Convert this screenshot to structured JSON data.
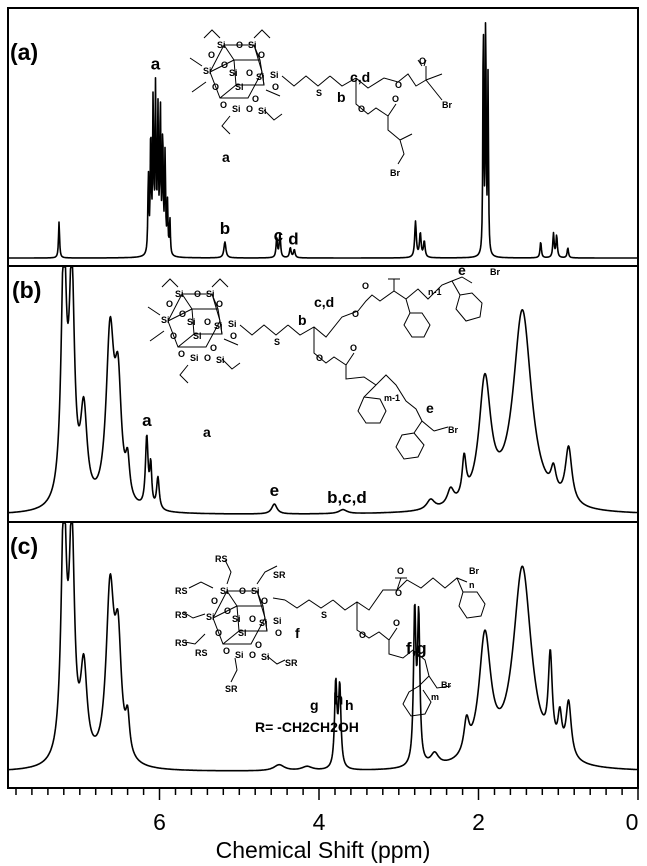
{
  "chart_data": {
    "type": "line",
    "xlabel": "Chemical Shift (ppm)",
    "xlim": [
      7.9,
      0
    ],
    "x_ticks": [
      6,
      4,
      2,
      0
    ],
    "x_tick_labels": [
      "6",
      "4",
      "2",
      "0"
    ],
    "grid": false,
    "panels": [
      {
        "label": "(a)",
        "peaks": [
          {
            "x": 7.26,
            "h": 0.18,
            "w": 0.008
          },
          {
            "x": 6.14,
            "h": 0.4,
            "w": 0.007
          },
          {
            "x": 6.11,
            "h": 0.62,
            "w": 0.007
          },
          {
            "x": 6.08,
            "h": 0.78,
            "w": 0.007
          },
          {
            "x": 6.05,
            "h": 0.8,
            "w": 0.007
          },
          {
            "x": 6.02,
            "h": 0.7,
            "w": 0.007
          },
          {
            "x": 5.99,
            "h": 0.76,
            "w": 0.007
          },
          {
            "x": 5.96,
            "h": 0.6,
            "w": 0.007
          },
          {
            "x": 5.93,
            "h": 0.5,
            "w": 0.007
          },
          {
            "x": 5.9,
            "h": 0.25,
            "w": 0.007
          },
          {
            "x": 5.87,
            "h": 0.18,
            "w": 0.007
          },
          {
            "x": 5.18,
            "h": 0.08,
            "w": 0.015
          },
          {
            "x": 4.53,
            "h": 0.1,
            "w": 0.01
          },
          {
            "x": 4.49,
            "h": 0.12,
            "w": 0.01
          },
          {
            "x": 4.36,
            "h": 0.05,
            "w": 0.012
          },
          {
            "x": 4.31,
            "h": 0.04,
            "w": 0.012
          },
          {
            "x": 2.79,
            "h": 0.18,
            "w": 0.012
          },
          {
            "x": 2.73,
            "h": 0.12,
            "w": 0.012
          },
          {
            "x": 2.68,
            "h": 0.08,
            "w": 0.012
          },
          {
            "x": 1.94,
            "h": 1.25,
            "w": 0.006
          },
          {
            "x": 1.91,
            "h": 1.25,
            "w": 0.006
          },
          {
            "x": 1.88,
            "h": 0.9,
            "w": 0.006
          },
          {
            "x": 1.22,
            "h": 0.08,
            "w": 0.01
          },
          {
            "x": 1.06,
            "h": 0.12,
            "w": 0.01
          },
          {
            "x": 1.02,
            "h": 0.11,
            "w": 0.01
          },
          {
            "x": 0.88,
            "h": 0.05,
            "w": 0.01
          }
        ],
        "annotations": [
          {
            "text": "a",
            "x": 6.05
          },
          {
            "text": "b",
            "x": 5.18
          },
          {
            "text": "c",
            "x": 4.51
          },
          {
            "text": "d",
            "x": 4.32
          }
        ]
      },
      {
        "label": "(b)",
        "peaks": [
          {
            "x": 7.2,
            "h": 1.25,
            "w": 0.04
          },
          {
            "x": 7.1,
            "h": 1.1,
            "w": 0.04
          },
          {
            "x": 6.95,
            "h": 0.45,
            "w": 0.05
          },
          {
            "x": 6.62,
            "h": 0.85,
            "w": 0.06
          },
          {
            "x": 6.52,
            "h": 0.55,
            "w": 0.05
          },
          {
            "x": 6.4,
            "h": 0.18,
            "w": 0.03
          },
          {
            "x": 6.16,
            "h": 0.35,
            "w": 0.02
          },
          {
            "x": 6.11,
            "h": 0.2,
            "w": 0.015
          },
          {
            "x": 6.02,
            "h": 0.16,
            "w": 0.02
          },
          {
            "x": 4.56,
            "h": 0.05,
            "w": 0.04
          },
          {
            "x": 3.7,
            "h": 0.02,
            "w": 0.06
          },
          {
            "x": 2.6,
            "h": 0.05,
            "w": 0.06
          },
          {
            "x": 2.35,
            "h": 0.08,
            "w": 0.05
          },
          {
            "x": 2.18,
            "h": 0.2,
            "w": 0.03
          },
          {
            "x": 1.92,
            "h": 0.62,
            "w": 0.09
          },
          {
            "x": 1.45,
            "h": 1.0,
            "w": 0.14
          },
          {
            "x": 1.06,
            "h": 0.12,
            "w": 0.04
          },
          {
            "x": 0.87,
            "h": 0.28,
            "w": 0.05
          }
        ],
        "annotations": [
          {
            "text": "a",
            "x": 6.16
          },
          {
            "text": "e",
            "x": 4.56
          },
          {
            "text": "b,c,d",
            "x": 3.65
          }
        ]
      },
      {
        "label": "(c)",
        "peaks": [
          {
            "x": 7.2,
            "h": 1.25,
            "w": 0.04
          },
          {
            "x": 7.1,
            "h": 1.1,
            "w": 0.04
          },
          {
            "x": 6.95,
            "h": 0.45,
            "w": 0.05
          },
          {
            "x": 6.62,
            "h": 0.85,
            "w": 0.06
          },
          {
            "x": 6.52,
            "h": 0.55,
            "w": 0.05
          },
          {
            "x": 6.4,
            "h": 0.18,
            "w": 0.03
          },
          {
            "x": 4.5,
            "h": 0.03,
            "w": 0.08
          },
          {
            "x": 4.15,
            "h": 0.02,
            "w": 0.08
          },
          {
            "x": 3.79,
            "h": 0.42,
            "w": 0.018
          },
          {
            "x": 3.74,
            "h": 0.4,
            "w": 0.018
          },
          {
            "x": 2.8,
            "h": 0.75,
            "w": 0.018
          },
          {
            "x": 2.75,
            "h": 0.72,
            "w": 0.018
          },
          {
            "x": 2.55,
            "h": 0.06,
            "w": 0.06
          },
          {
            "x": 2.15,
            "h": 0.16,
            "w": 0.04
          },
          {
            "x": 1.92,
            "h": 0.62,
            "w": 0.09
          },
          {
            "x": 1.45,
            "h": 1.0,
            "w": 0.14
          },
          {
            "x": 1.1,
            "h": 0.45,
            "w": 0.03
          },
          {
            "x": 0.98,
            "h": 0.18,
            "w": 0.03
          },
          {
            "x": 0.87,
            "h": 0.28,
            "w": 0.04
          }
        ],
        "annotations": [
          {
            "text": "h",
            "x": 3.76
          },
          {
            "text": "f,g",
            "x": 2.78
          }
        ]
      }
    ]
  },
  "structures": {
    "a": {
      "si_labels": [
        "Si",
        "Si",
        "Si",
        "Si",
        "Si",
        "Si",
        "Si",
        "Si",
        "Si"
      ],
      "o_labels": [
        "O",
        "O",
        "O",
        "O",
        "O",
        "O",
        "O",
        "O",
        "O",
        "O",
        "O",
        "O"
      ],
      "atoms": [
        "S",
        "O",
        "O",
        "O",
        "O",
        "Br",
        "Br"
      ],
      "labels": [
        "b",
        "c,d",
        "a"
      ]
    },
    "b": {
      "si_labels": [
        "Si",
        "Si",
        "Si",
        "Si",
        "Si",
        "Si",
        "Si",
        "Si",
        "Si"
      ],
      "o_labels": [
        "O",
        "O",
        "O",
        "O",
        "O",
        "O",
        "O",
        "O",
        "O",
        "O",
        "O",
        "O"
      ],
      "atoms": [
        "S",
        "O",
        "O",
        "O",
        "O",
        "Br",
        "Br"
      ],
      "labels": [
        "b",
        "c,d",
        "e",
        "e",
        "a"
      ],
      "repeat": [
        "n-1",
        "m-1"
      ]
    },
    "c": {
      "si_labels": [
        "Si",
        "Si",
        "Si",
        "Si",
        "Si",
        "Si",
        "Si",
        "Si",
        "Si"
      ],
      "o_labels": [
        "O",
        "O",
        "O",
        "O",
        "O",
        "O",
        "O",
        "O",
        "O",
        "O",
        "O",
        "O"
      ],
      "rs_labels": [
        "RS",
        "RS",
        "RS",
        "RS",
        "RS",
        "SR",
        "SR",
        "SR"
      ],
      "atoms": [
        "S",
        "O",
        "O",
        "O",
        "O",
        "Br",
        "Br"
      ],
      "labels": [
        "f",
        "g",
        "h"
      ],
      "repeat": [
        "n",
        "m"
      ],
      "r_def": "R= -CH2CH2OH"
    }
  }
}
